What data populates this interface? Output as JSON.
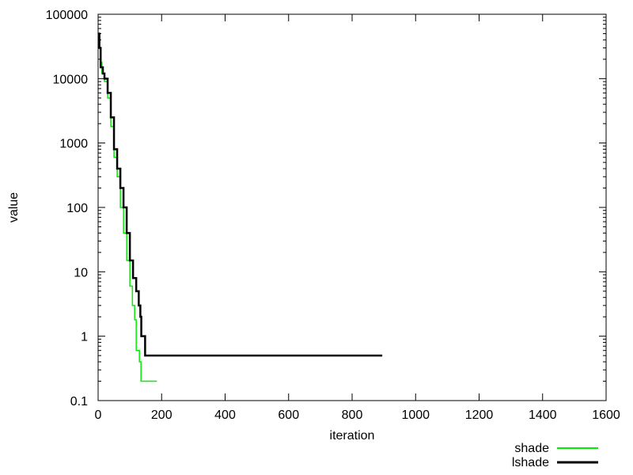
{
  "chart_data": {
    "type": "line",
    "xlabel": "iteration",
    "ylabel": "value",
    "xlim": [
      0,
      1600
    ],
    "ylim": [
      0.1,
      100000
    ],
    "yscale": "log",
    "x_ticks": [
      "0",
      "200",
      "400",
      "600",
      "800",
      "1000",
      "1200",
      "1400",
      "1600"
    ],
    "y_ticks": [
      "0.1",
      "1",
      "10",
      "100",
      "1000",
      "10000",
      "100000"
    ],
    "grid": false,
    "legend_position": "bottom-right",
    "series": [
      {
        "name": "shade",
        "color": "#00ee00",
        "step": true,
        "points": [
          [
            0,
            50000
          ],
          [
            4,
            30000
          ],
          [
            8,
            18000
          ],
          [
            12,
            12000
          ],
          [
            20,
            9000
          ],
          [
            30,
            5000
          ],
          [
            40,
            1800
          ],
          [
            50,
            600
          ],
          [
            60,
            300
          ],
          [
            70,
            100
          ],
          [
            80,
            40
          ],
          [
            90,
            15
          ],
          [
            100,
            6
          ],
          [
            108,
            3
          ],
          [
            115,
            1.8
          ],
          [
            120,
            0.6
          ],
          [
            128,
            0.6
          ],
          [
            130,
            0.4
          ],
          [
            135,
            0.2
          ],
          [
            185,
            0.2
          ]
        ]
      },
      {
        "name": "lshade",
        "color": "#000000",
        "step": true,
        "points": [
          [
            0,
            50000
          ],
          [
            4,
            30000
          ],
          [
            8,
            15000
          ],
          [
            15,
            12000
          ],
          [
            20,
            10000
          ],
          [
            30,
            6000
          ],
          [
            40,
            2500
          ],
          [
            50,
            800
          ],
          [
            60,
            400
          ],
          [
            70,
            200
          ],
          [
            80,
            100
          ],
          [
            90,
            40
          ],
          [
            100,
            15
          ],
          [
            110,
            8
          ],
          [
            120,
            5
          ],
          [
            128,
            3
          ],
          [
            133,
            2
          ],
          [
            136,
            1
          ],
          [
            145,
            1
          ],
          [
            148,
            0.5
          ],
          [
            895,
            0.5
          ]
        ]
      }
    ]
  }
}
